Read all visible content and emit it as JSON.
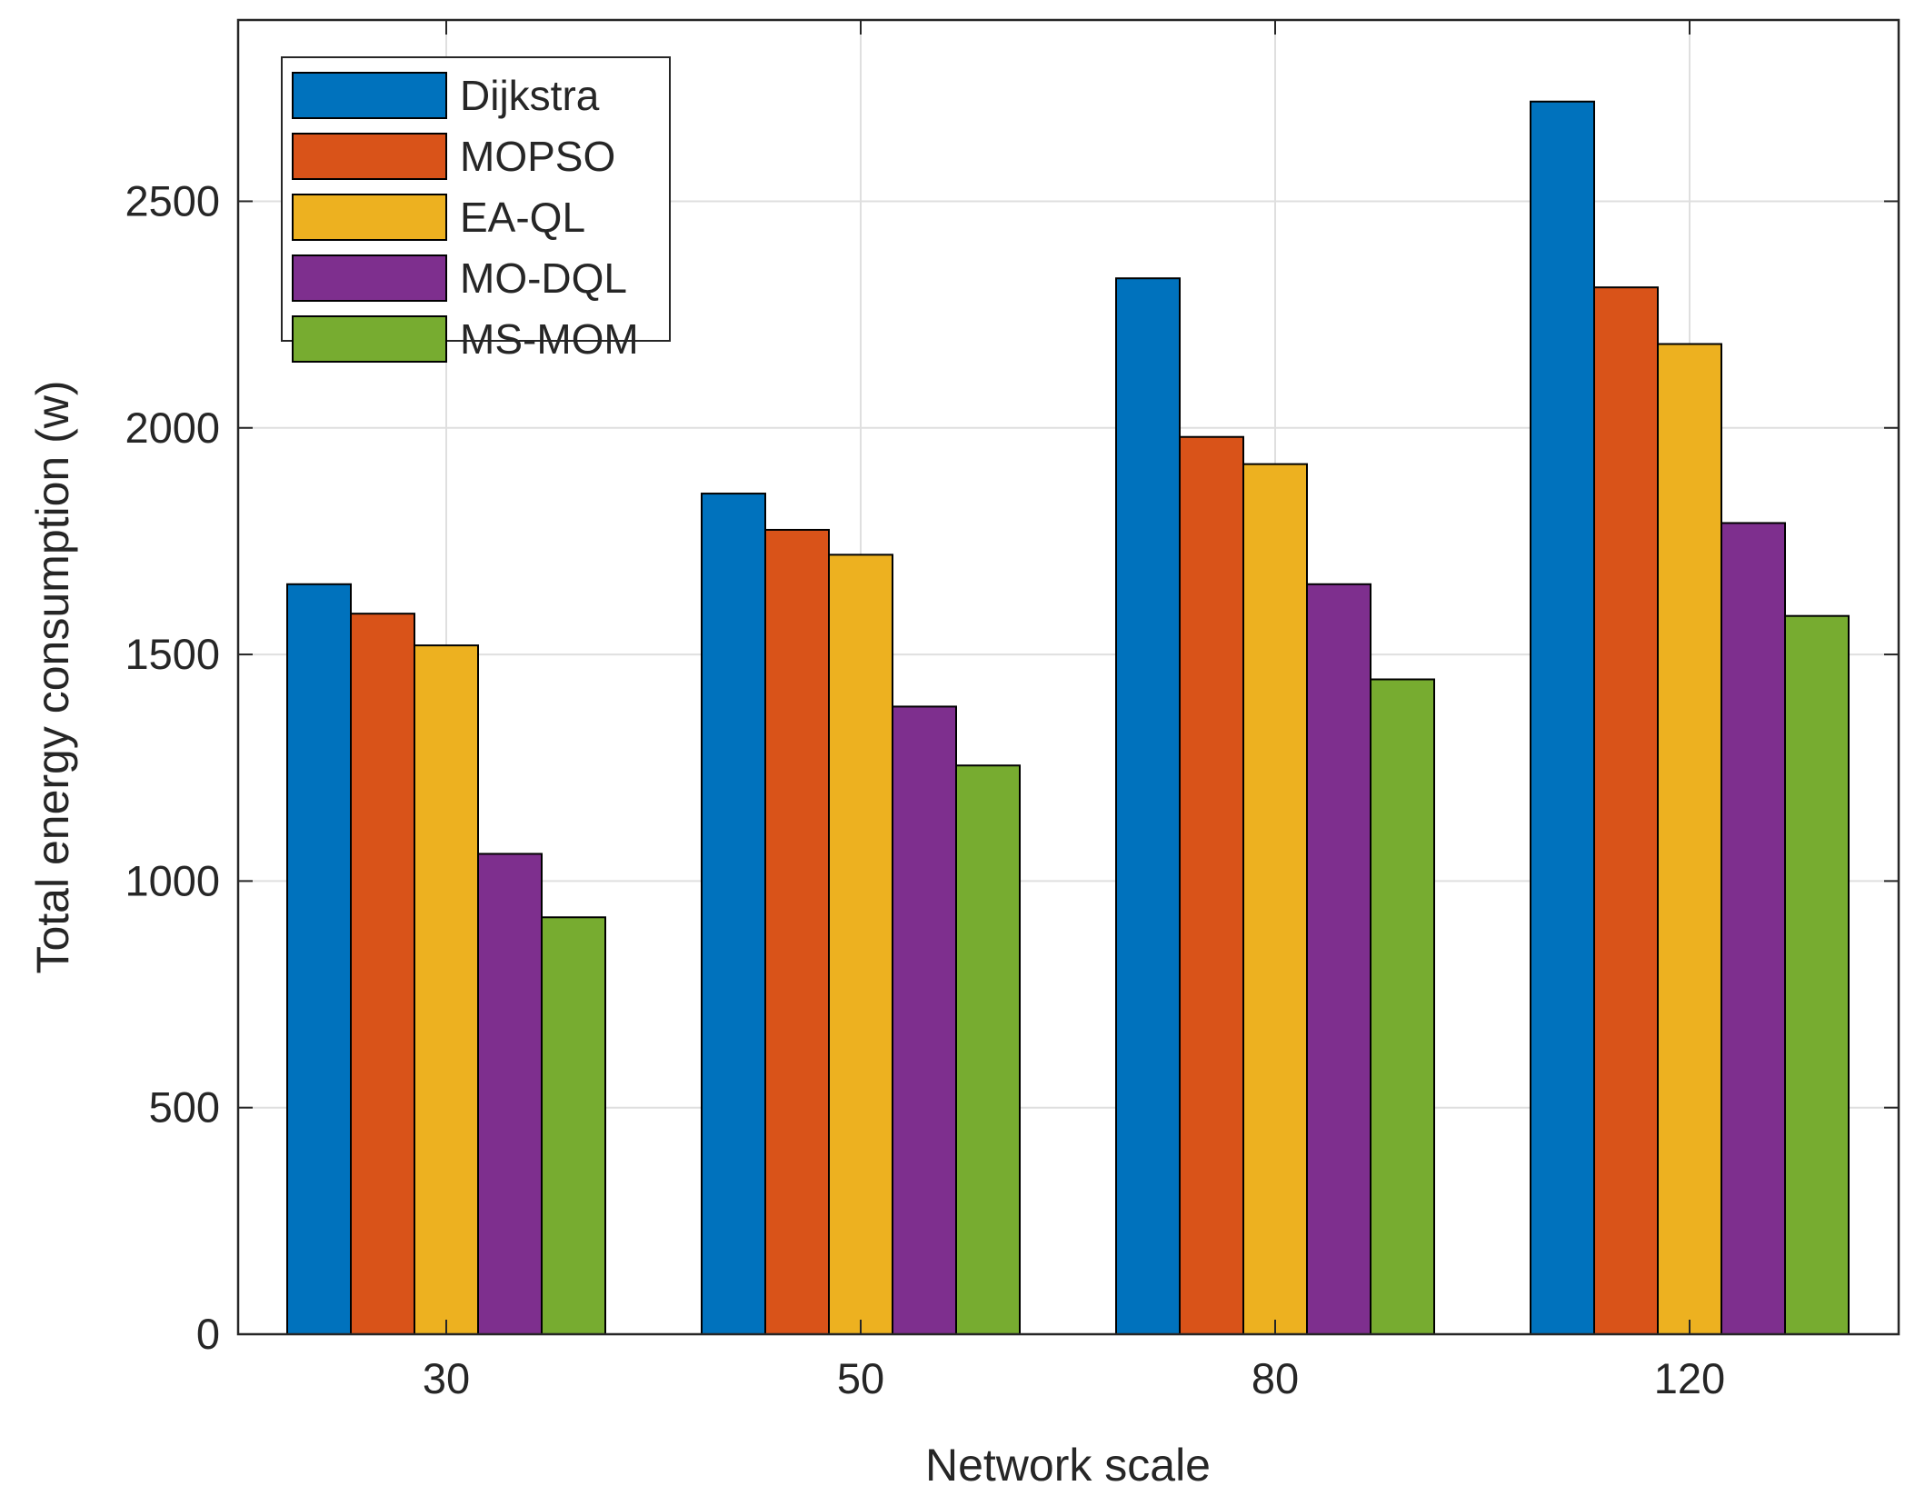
{
  "chart_data": {
    "type": "bar",
    "title": "",
    "xlabel": "Network scale",
    "ylabel": "Total energy consumption (w)",
    "categories": [
      "30",
      "50",
      "80",
      "120"
    ],
    "ylim": [
      0,
      2900
    ],
    "yticks": [
      0,
      500,
      1000,
      1500,
      2000,
      2500
    ],
    "grid": true,
    "legend_position": "top-left",
    "series": [
      {
        "name": "Dijkstra",
        "color": "#0072BD",
        "values": [
          1655,
          1855,
          2330,
          2720
        ]
      },
      {
        "name": "MOPSO",
        "color": "#D95319",
        "values": [
          1590,
          1775,
          1980,
          2310
        ]
      },
      {
        "name": "EA-QL",
        "color": "#EDB120",
        "values": [
          1520,
          1720,
          1920,
          2185
        ]
      },
      {
        "name": "MO-DQL",
        "color": "#7E2F8E",
        "values": [
          1060,
          1385,
          1655,
          1790
        ]
      },
      {
        "name": "MS-MOM",
        "color": "#77AC30",
        "values": [
          920,
          1255,
          1445,
          1585
        ]
      }
    ]
  }
}
